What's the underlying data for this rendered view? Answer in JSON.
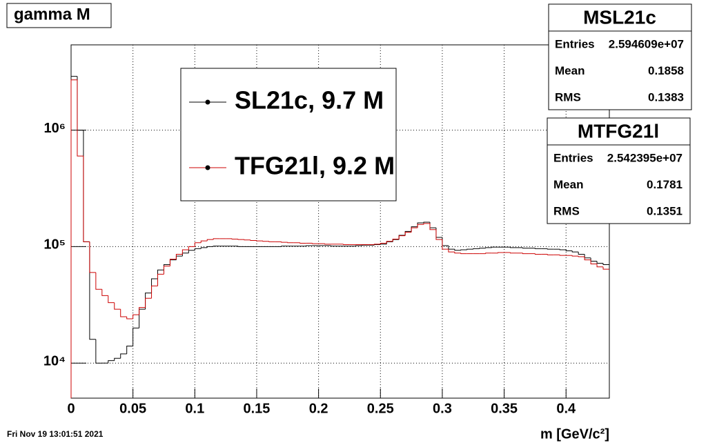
{
  "chart_data": {
    "type": "histogram",
    "title": "gamma M",
    "x_label": "m [GeV/c²]",
    "timestamp": "Fri Nov 19 13:01:51 2021",
    "log_y": true,
    "grid": true,
    "xlim": [
      0,
      0.435
    ],
    "ylim": [
      5000,
      5400000
    ],
    "xticks": [
      0,
      0.05,
      0.1,
      0.15,
      0.2,
      0.25,
      0.3,
      0.35,
      0.4
    ],
    "yticks": [
      {
        "value": 10000,
        "label": "10⁴"
      },
      {
        "value": 100000,
        "label": "10⁵"
      },
      {
        "value": 1000000,
        "label": "10⁶"
      }
    ],
    "bins": [
      0,
      0.005,
      0.01,
      0.015,
      0.02,
      0.025,
      0.03,
      0.035,
      0.04,
      0.045,
      0.05,
      0.055,
      0.06,
      0.065,
      0.07,
      0.075,
      0.08,
      0.085,
      0.09,
      0.095,
      0.1,
      0.105,
      0.11,
      0.115,
      0.12,
      0.125,
      0.13,
      0.135,
      0.14,
      0.145,
      0.15,
      0.155,
      0.16,
      0.165,
      0.17,
      0.175,
      0.18,
      0.185,
      0.19,
      0.195,
      0.2,
      0.205,
      0.21,
      0.215,
      0.22,
      0.225,
      0.23,
      0.235,
      0.24,
      0.245,
      0.25,
      0.255,
      0.26,
      0.265,
      0.27,
      0.275,
      0.28,
      0.285,
      0.29,
      0.295,
      0.3,
      0.305,
      0.31,
      0.315,
      0.32,
      0.325,
      0.33,
      0.335,
      0.34,
      0.345,
      0.35,
      0.355,
      0.36,
      0.365,
      0.37,
      0.375,
      0.38,
      0.385,
      0.39,
      0.395,
      0.4,
      0.405,
      0.41,
      0.415,
      0.42,
      0.425,
      0.43,
      0.435
    ],
    "series": [
      {
        "name": "SL21c, 9.7 M",
        "color": "#000000",
        "values": [
          2900000,
          1000000,
          110000,
          16000,
          10000,
          10000,
          10500,
          11000,
          12000,
          14000,
          20000,
          29000,
          40000,
          53000,
          63000,
          70000,
          77000,
          83000,
          88000,
          93000,
          96000,
          98000,
          100000,
          101000,
          101000,
          101000,
          101000,
          100000,
          100000,
          100000,
          100000,
          100000,
          100000,
          100000,
          101000,
          101000,
          101000,
          101000,
          102000,
          102000,
          102000,
          102000,
          101000,
          101000,
          101000,
          101000,
          102000,
          103000,
          103000,
          104000,
          105000,
          110000,
          115000,
          125000,
          135000,
          148000,
          160000,
          162000,
          145000,
          120000,
          102000,
          95000,
          93000,
          94000,
          95000,
          96000,
          97000,
          98000,
          99000,
          99000,
          99000,
          98000,
          98000,
          97000,
          97000,
          96000,
          96000,
          95000,
          95000,
          94000,
          92000,
          90000,
          86000,
          80000,
          75000,
          72000,
          70000
        ]
      },
      {
        "name": "TFG21l, 9.2 M",
        "color": "#cc0000",
        "values": [
          2700000,
          600000,
          110000,
          60000,
          43000,
          38000,
          33000,
          29000,
          25000,
          24000,
          26000,
          30000,
          36000,
          46000,
          58000,
          68000,
          78000,
          86000,
          94000,
          100000,
          108000,
          112000,
          115000,
          117000,
          117000,
          117000,
          116000,
          115000,
          114000,
          113000,
          112000,
          111000,
          110000,
          110000,
          109000,
          108000,
          108000,
          107000,
          107000,
          106000,
          106000,
          105000,
          105000,
          105000,
          104000,
          104000,
          104000,
          104000,
          104000,
          105000,
          107000,
          111000,
          116000,
          124000,
          133000,
          145000,
          155000,
          158000,
          140000,
          115000,
          95000,
          90000,
          88000,
          87000,
          87000,
          87000,
          87000,
          88000,
          88000,
          89000,
          89000,
          88000,
          88000,
          87000,
          87000,
          86000,
          86000,
          85000,
          85000,
          84000,
          84000,
          83000,
          82000,
          77000,
          71000,
          67000,
          64000
        ]
      }
    ],
    "stats": [
      {
        "name": "MSL21c",
        "rows": [
          {
            "label": "Entries",
            "value": "2.594609e+07"
          },
          {
            "label": "Mean",
            "value": 0.1858
          },
          {
            "label": "RMS",
            "value": 0.1383
          }
        ]
      },
      {
        "name": "MTFG21l",
        "rows": [
          {
            "label": "Entries",
            "value": "2.542395e+07"
          },
          {
            "label": "Mean",
            "value": 0.1781
          },
          {
            "label": "RMS",
            "value": 0.1351
          }
        ]
      }
    ]
  }
}
